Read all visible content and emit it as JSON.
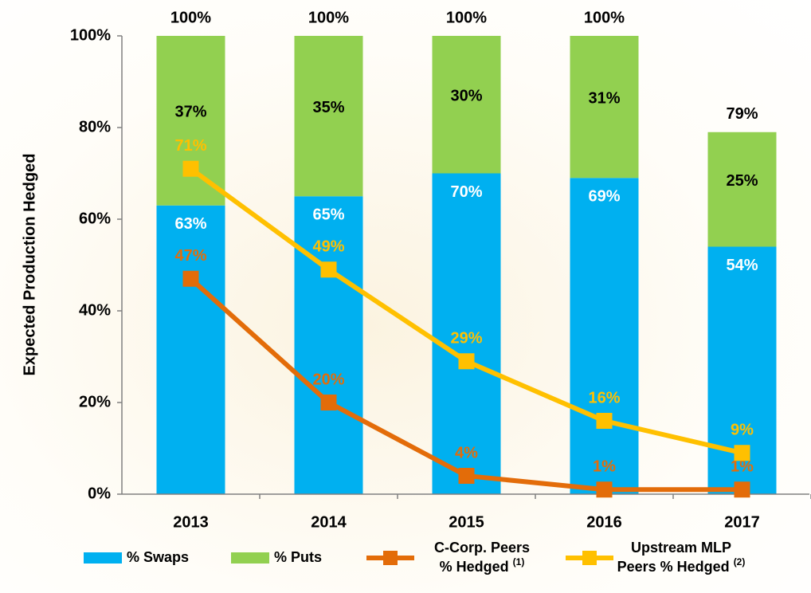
{
  "chart_data": {
    "type": "bar",
    "stacked": true,
    "y_label": "Expected Production Hedged",
    "categories": [
      "2013",
      "2014",
      "2015",
      "2016",
      "2017"
    ],
    "ylim": [
      0,
      100
    ],
    "yticks": [
      {
        "value": 0,
        "label": "0%"
      },
      {
        "value": 20,
        "label": "20%"
      },
      {
        "value": 40,
        "label": "40%"
      },
      {
        "value": 60,
        "label": "60%"
      },
      {
        "value": 80,
        "label": "80%"
      },
      {
        "value": 100,
        "label": "100%"
      }
    ],
    "totals": [
      100,
      100,
      100,
      100,
      79
    ],
    "total_labels": [
      "100%",
      "100%",
      "100%",
      "100%",
      "79%"
    ],
    "series": [
      {
        "name": "% Swaps",
        "type": "bar",
        "color": "#00b0f0",
        "label_color": "#ffffff",
        "values": [
          63,
          65,
          70,
          69,
          54
        ],
        "value_labels": [
          "63%",
          "65%",
          "70%",
          "69%",
          "54%"
        ]
      },
      {
        "name": "% Puts",
        "type": "bar",
        "color": "#92d050",
        "label_color": "#000000",
        "values": [
          37,
          35,
          30,
          31,
          25
        ],
        "value_labels": [
          "37%",
          "35%",
          "30%",
          "31%",
          "25%"
        ]
      },
      {
        "name": "C-Corp. Peers % Hedged",
        "footnote": "(1)",
        "type": "line",
        "color": "#e36c09",
        "values": [
          47,
          20,
          4,
          1,
          1
        ],
        "value_labels": [
          "47%",
          "20%",
          "4%",
          "1%",
          "1%"
        ]
      },
      {
        "name": "Upstream MLP Peers % Hedged",
        "footnote": "(2)",
        "type": "line",
        "color": "#ffc000",
        "values": [
          71,
          49,
          29,
          16,
          9
        ],
        "value_labels": [
          "71%",
          "49%",
          "29%",
          "16%",
          "9%"
        ]
      }
    ]
  }
}
